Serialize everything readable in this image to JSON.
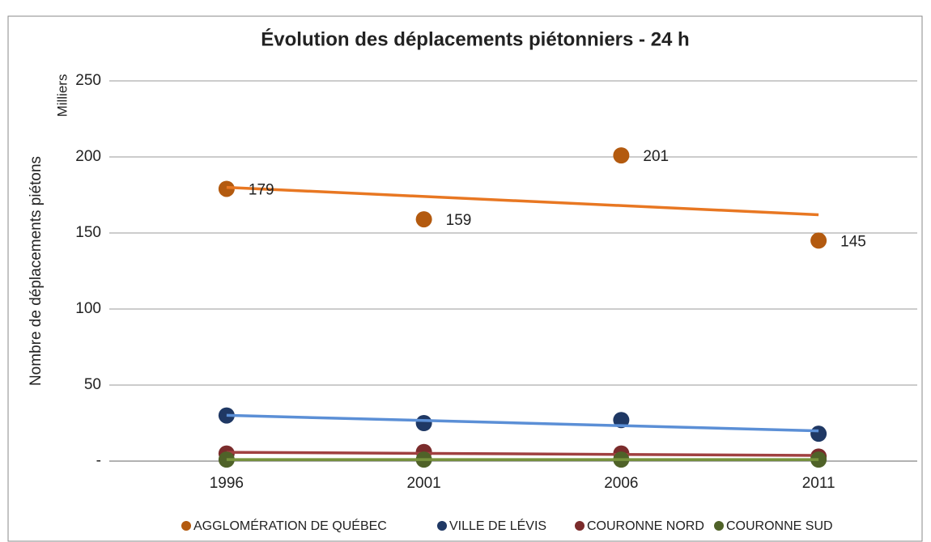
{
  "chart_data": {
    "type": "scatter",
    "title": "Évolution des déplacements piétonniers - 24 h",
    "y_label": "Nombre de déplacements piétons",
    "y_unit_label": "Milliers",
    "categories": [
      "1996",
      "2001",
      "2006",
      "2011"
    ],
    "series": [
      {
        "name": "AGGLOMÉRATION DE QUÉBEC",
        "color": "#b35a0f",
        "trendline_color": "#e87722",
        "show_labels": true,
        "values": [
          179,
          159,
          201,
          145
        ]
      },
      {
        "name": "VILLE DE LÉVIS",
        "color": "#1f3864",
        "trendline_color": "#5b8fd6",
        "show_labels": false,
        "values": [
          30,
          25,
          27,
          18
        ]
      },
      {
        "name": "COURONNE NORD",
        "color": "#7b2c2c",
        "trendline_color": "#a04040",
        "show_labels": false,
        "values": [
          5,
          6,
          5,
          3
        ]
      },
      {
        "name": "COURONNE SUD",
        "color": "#4f6228",
        "trendline_color": "#77933c",
        "show_labels": false,
        "values": [
          1,
          1,
          1,
          1
        ]
      }
    ],
    "ylim": [
      0,
      250
    ],
    "yticks": [
      {
        "value": 0,
        "label": "-"
      },
      50,
      100,
      150,
      200,
      250
    ],
    "grid": true,
    "trendlines": true,
    "legend": "bottom"
  }
}
